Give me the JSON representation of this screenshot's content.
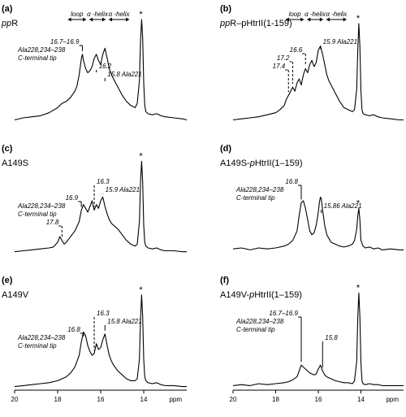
{
  "figure": {
    "xlabel": "ppm",
    "xlim": [
      20,
      12
    ],
    "xticks": [
      20,
      18,
      16,
      14
    ]
  },
  "chart_data": [
    {
      "type": "line",
      "letter": "(a)",
      "title_prefix": "",
      "title_italic": "pp",
      "title_rest": "R",
      "x": [
        20.0,
        19.6,
        19.2,
        18.8,
        18.4,
        18.0,
        17.8,
        17.6,
        17.4,
        17.2,
        17.1,
        17.0,
        16.9,
        16.85,
        16.8,
        16.7,
        16.6,
        16.5,
        16.4,
        16.3,
        16.2,
        16.1,
        16.0,
        15.9,
        15.8,
        15.7,
        15.6,
        15.5,
        15.4,
        15.3,
        15.2,
        15.1,
        15.0,
        14.8,
        14.6,
        14.4,
        14.3,
        14.2,
        14.15,
        14.1,
        14.05,
        14.0,
        13.95,
        13.9,
        13.8,
        13.6,
        13.4,
        13.2,
        13.0,
        12.6,
        12.2,
        12.0
      ],
      "y": [
        0.02,
        0.04,
        0.05,
        0.06,
        0.09,
        0.14,
        0.18,
        0.2,
        0.24,
        0.3,
        0.35,
        0.46,
        0.62,
        0.66,
        0.6,
        0.52,
        0.48,
        0.5,
        0.54,
        0.62,
        0.66,
        0.6,
        0.56,
        0.66,
        0.72,
        0.62,
        0.52,
        0.46,
        0.42,
        0.38,
        0.34,
        0.3,
        0.26,
        0.2,
        0.16,
        0.14,
        0.18,
        0.4,
        0.78,
        1.0,
        0.82,
        0.38,
        0.16,
        0.1,
        0.08,
        0.07,
        0.08,
        0.06,
        0.05,
        0.04,
        0.03,
        0.02
      ],
      "annotations": [
        {
          "text": "16.7–16.9",
          "x": 16.85,
          "style": "solid"
        },
        {
          "text": "Ala228,234–238",
          "x": null,
          "style": "none"
        },
        {
          "text": "C-terminal tip",
          "x": null,
          "style": "none"
        },
        {
          "text": "16.2",
          "x": 16.2,
          "style": "dashed"
        },
        {
          "text": "15.8 Ala221",
          "x": 15.8,
          "style": "solid"
        }
      ],
      "regions": [
        {
          "label": "loop",
          "from": 17.6,
          "to": 16.6
        },
        {
          "label": "α -helix",
          "from": 16.6,
          "to": 15.7
        },
        {
          "label": "α -helix",
          "from": 15.7,
          "to": 14.6
        }
      ],
      "star_x": 14.1
    },
    {
      "type": "line",
      "letter": "(b)",
      "title_prefix": "",
      "title_italic": "pp",
      "title_rest": "R–pHtrII(1-159)",
      "x": [
        20.0,
        19.6,
        19.2,
        18.8,
        18.4,
        18.0,
        17.8,
        17.6,
        17.5,
        17.4,
        17.3,
        17.2,
        17.1,
        17.0,
        16.9,
        16.8,
        16.7,
        16.6,
        16.5,
        16.4,
        16.3,
        16.2,
        16.1,
        16.0,
        15.9,
        15.8,
        15.7,
        15.6,
        15.5,
        15.4,
        15.2,
        15.0,
        14.8,
        14.6,
        14.4,
        14.3,
        14.2,
        14.15,
        14.1,
        14.05,
        14.0,
        13.95,
        13.9,
        13.8,
        13.6,
        13.4,
        13.2,
        13.0,
        12.6,
        12.2,
        12.0
      ],
      "y": [
        0.02,
        0.03,
        0.04,
        0.05,
        0.07,
        0.09,
        0.12,
        0.16,
        0.22,
        0.26,
        0.3,
        0.34,
        0.3,
        0.38,
        0.42,
        0.36,
        0.46,
        0.52,
        0.48,
        0.56,
        0.6,
        0.54,
        0.58,
        0.7,
        0.74,
        0.66,
        0.56,
        0.46,
        0.4,
        0.36,
        0.28,
        0.2,
        0.14,
        0.12,
        0.1,
        0.12,
        0.32,
        0.7,
        0.96,
        0.74,
        0.3,
        0.12,
        0.08,
        0.07,
        0.06,
        0.07,
        0.05,
        0.04,
        0.03,
        0.02,
        0.02
      ],
      "annotations": [
        {
          "text": "15.9 Ala221",
          "x": 15.9,
          "style": "solid"
        },
        {
          "text": "16.6",
          "x": 16.6,
          "style": "dashed"
        },
        {
          "text": "17.2",
          "x": 17.2,
          "style": "dashed"
        },
        {
          "text": "17.4",
          "x": 17.4,
          "style": "dashed"
        }
      ],
      "regions": [
        {
          "label": "loop",
          "from": 17.6,
          "to": 16.6
        },
        {
          "label": "α -helix",
          "from": 16.6,
          "to": 15.7
        },
        {
          "label": "α -helix",
          "from": 15.7,
          "to": 14.6
        }
      ],
      "star_x": 14.1
    },
    {
      "type": "line",
      "letter": "(c)",
      "title_prefix": "A149S",
      "title_italic": "",
      "title_rest": "",
      "x": [
        20.0,
        19.6,
        19.2,
        18.8,
        18.4,
        18.2,
        18.0,
        17.9,
        17.8,
        17.7,
        17.6,
        17.4,
        17.2,
        17.0,
        16.9,
        16.8,
        16.7,
        16.6,
        16.5,
        16.4,
        16.3,
        16.2,
        16.1,
        16.0,
        15.9,
        15.8,
        15.7,
        15.6,
        15.5,
        15.4,
        15.2,
        15.0,
        14.8,
        14.6,
        14.4,
        14.3,
        14.2,
        14.15,
        14.1,
        14.05,
        14.0,
        13.95,
        13.9,
        13.8,
        13.6,
        13.4,
        13.2,
        13.0,
        12.6,
        12.2,
        12.0
      ],
      "y": [
        0.02,
        0.03,
        0.04,
        0.05,
        0.06,
        0.07,
        0.12,
        0.18,
        0.14,
        0.1,
        0.12,
        0.18,
        0.24,
        0.34,
        0.46,
        0.52,
        0.48,
        0.44,
        0.5,
        0.56,
        0.46,
        0.52,
        0.48,
        0.56,
        0.6,
        0.5,
        0.42,
        0.36,
        0.32,
        0.3,
        0.26,
        0.2,
        0.14,
        0.1,
        0.08,
        0.1,
        0.34,
        0.74,
        0.98,
        0.76,
        0.3,
        0.12,
        0.08,
        0.06,
        0.05,
        0.06,
        0.04,
        0.03,
        0.03,
        0.02,
        0.02
      ],
      "annotations": [
        {
          "text": "16.3",
          "x": 16.3,
          "style": "dashed"
        },
        {
          "text": "15.9 Ala221",
          "x": 15.9,
          "style": "solid"
        },
        {
          "text": "16.9",
          "x": 16.9,
          "style": "solid"
        },
        {
          "text": "Ala228,234–238",
          "x": null,
          "style": "none"
        },
        {
          "text": "C-terminal tip",
          "x": null,
          "style": "none"
        },
        {
          "text": "17.8",
          "x": 17.8,
          "style": "dashed"
        }
      ],
      "regions": [],
      "star_x": 14.1
    },
    {
      "type": "line",
      "letter": "(d)",
      "title_prefix": "A149S-",
      "title_italic": "p",
      "title_rest": "HtrII(1–159)",
      "x": [
        20.0,
        19.6,
        19.2,
        18.8,
        18.4,
        18.0,
        17.6,
        17.4,
        17.2,
        17.0,
        16.9,
        16.8,
        16.7,
        16.6,
        16.5,
        16.4,
        16.3,
        16.2,
        16.1,
        16.0,
        15.95,
        15.9,
        15.86,
        15.8,
        15.7,
        15.6,
        15.4,
        15.2,
        15.0,
        14.8,
        14.6,
        14.4,
        14.3,
        14.2,
        14.15,
        14.1,
        14.05,
        14.0,
        13.9,
        13.8,
        13.6,
        13.4,
        13.2,
        13.0,
        12.6,
        12.2,
        12.0
      ],
      "y": [
        0.05,
        0.06,
        0.04,
        0.06,
        0.05,
        0.06,
        0.08,
        0.1,
        0.14,
        0.24,
        0.4,
        0.54,
        0.56,
        0.48,
        0.36,
        0.24,
        0.2,
        0.22,
        0.3,
        0.44,
        0.54,
        0.6,
        0.58,
        0.46,
        0.3,
        0.2,
        0.12,
        0.1,
        0.08,
        0.07,
        0.08,
        0.1,
        0.14,
        0.26,
        0.4,
        0.48,
        0.36,
        0.14,
        0.08,
        0.06,
        0.07,
        0.05,
        0.06,
        0.04,
        0.05,
        0.04,
        0.04
      ],
      "annotations": [
        {
          "text": "16.8",
          "x": 16.8,
          "style": "solid"
        },
        {
          "text": "Ala228,234–238",
          "x": null,
          "style": "none"
        },
        {
          "text": "C-terminal tip",
          "x": null,
          "style": "none"
        },
        {
          "text": "15.86 Ala221",
          "x": 15.86,
          "style": "solid"
        }
      ],
      "regions": [],
      "star_x": 14.1
    },
    {
      "type": "line",
      "letter": "(e)",
      "title_prefix": "A149V",
      "title_italic": "",
      "title_rest": "",
      "x": [
        20.0,
        19.6,
        19.2,
        18.8,
        18.4,
        18.0,
        17.8,
        17.6,
        17.4,
        17.2,
        17.0,
        16.9,
        16.8,
        16.7,
        16.6,
        16.5,
        16.4,
        16.3,
        16.2,
        16.1,
        16.0,
        15.9,
        15.8,
        15.7,
        15.6,
        15.5,
        15.4,
        15.2,
        15.0,
        14.8,
        14.6,
        14.4,
        14.3,
        14.2,
        14.15,
        14.1,
        14.05,
        14.0,
        13.95,
        13.9,
        13.8,
        13.6,
        13.4,
        13.2,
        13.0,
        12.6,
        12.2,
        12.0
      ],
      "y": [
        0.02,
        0.03,
        0.04,
        0.05,
        0.06,
        0.08,
        0.1,
        0.12,
        0.16,
        0.22,
        0.34,
        0.48,
        0.58,
        0.54,
        0.44,
        0.38,
        0.34,
        0.36,
        0.46,
        0.4,
        0.42,
        0.5,
        0.56,
        0.44,
        0.34,
        0.28,
        0.24,
        0.18,
        0.14,
        0.1,
        0.08,
        0.08,
        0.1,
        0.3,
        0.7,
        0.96,
        0.74,
        0.3,
        0.12,
        0.08,
        0.06,
        0.05,
        0.06,
        0.04,
        0.03,
        0.03,
        0.02,
        0.02
      ],
      "annotations": [
        {
          "text": "16.3",
          "x": 16.3,
          "style": "dashed"
        },
        {
          "text": "15.8 Ala221",
          "x": 15.8,
          "style": "solid"
        },
        {
          "text": "16.8",
          "x": 16.8,
          "style": "solid"
        },
        {
          "text": "Ala228,234–238",
          "x": null,
          "style": "none"
        },
        {
          "text": "C-terminal tip",
          "x": null,
          "style": "none"
        }
      ],
      "regions": [],
      "star_x": 14.1
    },
    {
      "type": "line",
      "letter": "(f)",
      "title_prefix": "A149V-",
      "title_italic": "p",
      "title_rest": "HtrII(1–159)",
      "x": [
        20.0,
        19.6,
        19.2,
        18.8,
        18.4,
        18.0,
        17.6,
        17.4,
        17.2,
        17.0,
        16.9,
        16.8,
        16.7,
        16.6,
        16.5,
        16.4,
        16.3,
        16.2,
        16.1,
        16.0,
        15.9,
        15.8,
        15.7,
        15.6,
        15.4,
        15.2,
        15.0,
        14.8,
        14.6,
        14.4,
        14.3,
        14.2,
        14.15,
        14.1,
        14.05,
        14.0,
        13.95,
        13.9,
        13.8,
        13.6,
        13.4,
        13.2,
        13.0,
        12.6,
        12.2,
        12.0
      ],
      "y": [
        0.03,
        0.04,
        0.03,
        0.05,
        0.04,
        0.05,
        0.06,
        0.07,
        0.09,
        0.12,
        0.18,
        0.24,
        0.22,
        0.2,
        0.18,
        0.16,
        0.15,
        0.14,
        0.15,
        0.2,
        0.24,
        0.18,
        0.14,
        0.12,
        0.1,
        0.08,
        0.07,
        0.06,
        0.06,
        0.05,
        0.08,
        0.28,
        0.72,
        0.98,
        0.74,
        0.26,
        0.08,
        0.05,
        0.04,
        0.05,
        0.04,
        0.04,
        0.03,
        0.03,
        0.03,
        0.03
      ],
      "annotations": [
        {
          "text": "16.7–16.9",
          "x": 16.8,
          "style": "solid"
        },
        {
          "text": "Ala228,234–238",
          "x": null,
          "style": "none"
        },
        {
          "text": "C-terminal tip",
          "x": null,
          "style": "none"
        },
        {
          "text": "15.8",
          "x": 15.8,
          "style": "solid"
        }
      ],
      "regions": [],
      "star_x": 14.1
    }
  ]
}
